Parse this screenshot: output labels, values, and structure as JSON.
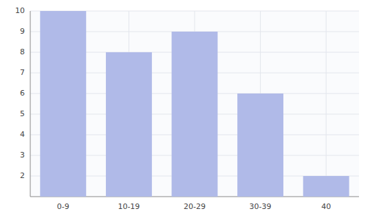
{
  "chart_data": {
    "type": "bar",
    "categories": [
      "0-9",
      "10-19",
      "20-29",
      "30-39",
      "40"
    ],
    "values": [
      10,
      8,
      9,
      6,
      2
    ],
    "color": "#b0bae8",
    "ylim": [
      1,
      10
    ],
    "yticks": [
      2,
      3,
      4,
      5,
      6,
      7,
      8,
      9,
      10
    ],
    "grid": true
  }
}
